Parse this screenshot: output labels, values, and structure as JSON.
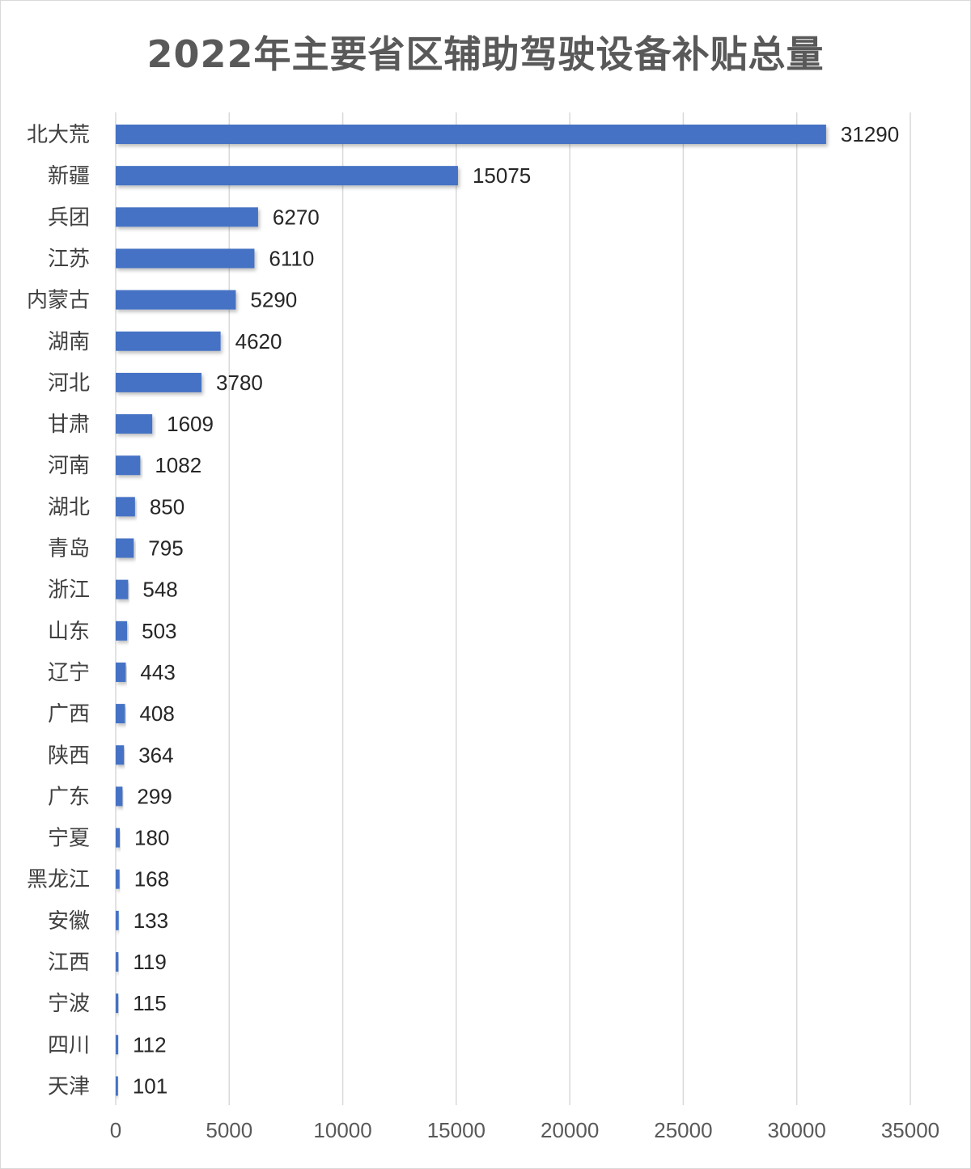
{
  "chart_data": {
    "type": "bar",
    "orientation": "horizontal",
    "title": "2022年主要省区辅助驾驶设备补贴总量",
    "categories": [
      "北大荒",
      "新疆",
      "兵团",
      "江苏",
      "内蒙古",
      "湖南",
      "河北",
      "甘肃",
      "河南",
      "湖北",
      "青岛",
      "浙江",
      "山东",
      "辽宁",
      "广西",
      "陕西",
      "广东",
      "宁夏",
      "黑龙江",
      "安徽",
      "江西",
      "宁波",
      "四川",
      "天津"
    ],
    "values": [
      31290,
      15075,
      6270,
      6110,
      5290,
      4620,
      3780,
      1609,
      1082,
      850,
      795,
      548,
      503,
      443,
      408,
      364,
      299,
      180,
      168,
      133,
      119,
      115,
      112,
      101
    ],
    "value_labels": [
      "31290",
      "15075",
      "6270",
      "6110",
      "5290",
      "4620",
      "3780",
      "1609",
      "1082",
      "850",
      "795",
      "548",
      "503",
      "443",
      "408",
      "364",
      "299",
      "180",
      "168",
      "133",
      "119",
      "115",
      "112",
      "101"
    ],
    "xlim": [
      0,
      35000
    ],
    "x_ticks": [
      "0",
      "5000",
      "10000",
      "15000",
      "20000",
      "25000",
      "30000",
      "35000"
    ],
    "xlabel": "",
    "ylabel": "",
    "grid": "vertical",
    "legend": "none",
    "bar_color": "#4472C4"
  }
}
